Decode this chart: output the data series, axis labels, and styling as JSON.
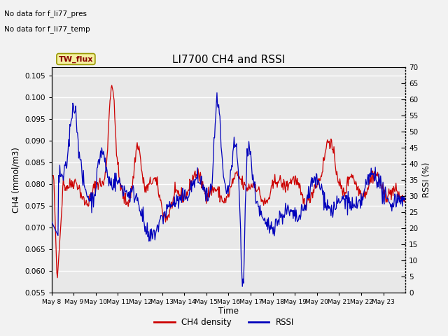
{
  "title": "LI7700 CH4 and RSSI",
  "xlabel": "Time",
  "ylabel_left": "CH4 (mmol/m3)",
  "ylabel_right": "RSSI (%)",
  "annotations": [
    "No data for f_li77_pres",
    "No data for f_li77_temp"
  ],
  "box_label": "TW_flux",
  "legend_entries": [
    "CH4 density",
    "RSSI"
  ],
  "legend_colors": [
    "#cc0000",
    "#0000bb"
  ],
  "ylim_left": [
    0.055,
    0.107
  ],
  "ylim_right": [
    0,
    70
  ],
  "yticks_left": [
    0.055,
    0.06,
    0.065,
    0.07,
    0.075,
    0.08,
    0.085,
    0.09,
    0.095,
    0.1,
    0.105
  ],
  "yticks_right": [
    0,
    5,
    10,
    15,
    20,
    25,
    30,
    35,
    40,
    45,
    50,
    55,
    60,
    65,
    70
  ],
  "xtick_labels": [
    "May 8",
    "May 9",
    "May 10",
    "May 11",
    "May 12",
    "May 13",
    "May 14",
    "May 15",
    "May 16",
    "May 17",
    "May 18",
    "May 19",
    "May 20",
    "May 21",
    "May 22",
    "May 23"
  ],
  "n_points": 600,
  "plot_bg": "#e8e8e8",
  "fig_bg": "#f2f2f2",
  "grid_color": "#ffffff",
  "ch4_color": "#cc0000",
  "rssi_color": "#0000bb",
  "linewidth": 0.9
}
